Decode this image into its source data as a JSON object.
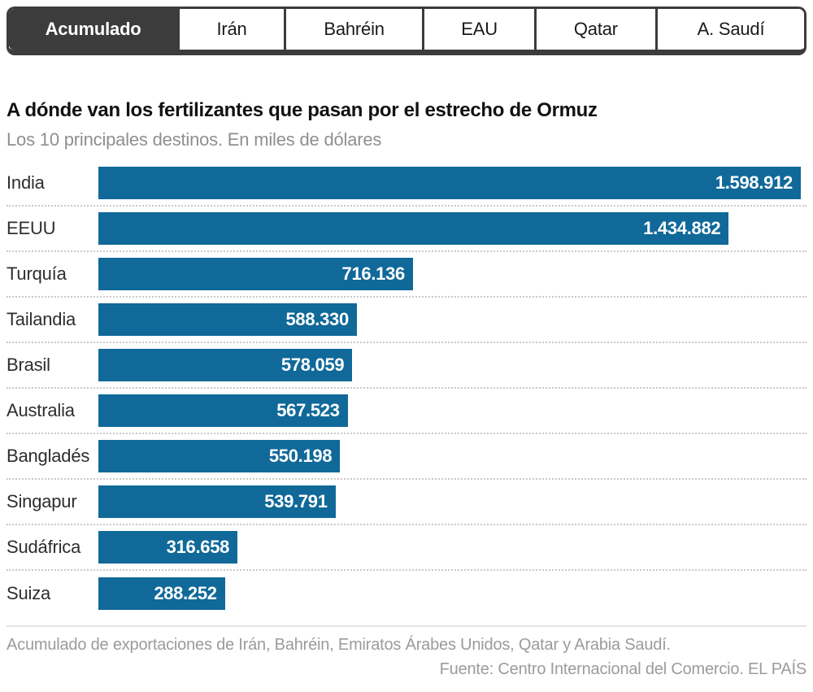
{
  "tabs": {
    "items": [
      {
        "id": "acumulado",
        "label": "Acumulado",
        "active": true
      },
      {
        "id": "iran",
        "label": "Irán",
        "active": false
      },
      {
        "id": "bahrein",
        "label": "Bahréin",
        "active": false
      },
      {
        "id": "eau",
        "label": "EAU",
        "active": false
      },
      {
        "id": "qatar",
        "label": "Qatar",
        "active": false
      },
      {
        "id": "a-saudi",
        "label": "A. Saudí",
        "active": false
      }
    ]
  },
  "chart_data": {
    "type": "bar",
    "orientation": "horizontal",
    "title": "A dónde van los fertilizantes que pasan por el estrecho de Ormuz",
    "subtitle": "Los 10 principales destinos. En miles de dólares",
    "unit": "miles de dólares",
    "categories": [
      "India",
      "EEUU",
      "Turquía",
      "Tailandia",
      "Brasil",
      "Australia",
      "Bangladés",
      "Singapur",
      "Sudáfrica",
      "Suiza"
    ],
    "values": [
      1598912,
      1434882,
      716136,
      588330,
      578059,
      567523,
      550198,
      539791,
      316658,
      288252
    ],
    "value_labels": [
      "1.598.912",
      "1.434.882",
      "716.136",
      "588.330",
      "578.059",
      "567.523",
      "550.198",
      "539.791",
      "316.658",
      "288.252"
    ],
    "max_value": 1598912,
    "bar_color": "#106999",
    "grid": false,
    "legend": "none",
    "value_label_position": "inside-right"
  },
  "footer": {
    "note": "Acumulado de exportaciones de Irán, Bahréin, Emiratos Árabes Unidos, Qatar y Arabia Saudí.",
    "source": "Fuente: Centro Internacional del Comercio. EL PAÍS"
  },
  "colors": {
    "bar": "#106999",
    "tab_active_bg": "#3c3c3c",
    "tab_border": "#3c3c3c",
    "title_text": "#111111",
    "muted_text": "#9b9b9b",
    "row_separator": "#c9c9c9"
  }
}
